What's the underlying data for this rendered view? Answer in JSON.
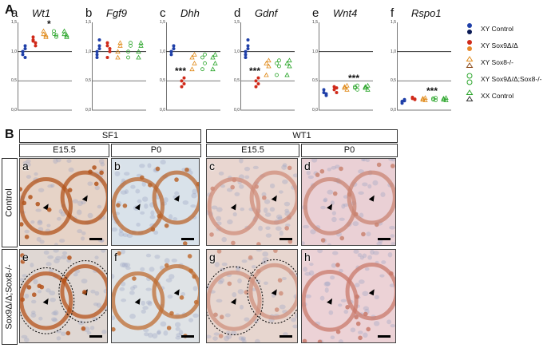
{
  "section_a": {
    "letter": "A",
    "panels": [
      {
        "letter": "a",
        "gene": "Wt1",
        "sig": "*",
        "sig_pos": 3
      },
      {
        "letter": "b",
        "gene": "Fgf9",
        "sig": "",
        "sig_pos": 0
      },
      {
        "letter": "c",
        "gene": "Dhh",
        "sig": "***",
        "sig_pos": 1
      },
      {
        "letter": "d",
        "gene": "Gdnf",
        "sig": "***",
        "sig_pos": 1
      },
      {
        "letter": "e",
        "gene": "Wnt4",
        "sig": "***",
        "sig_pos": 3
      },
      {
        "letter": "f",
        "gene": "Rspo1",
        "sig": "***",
        "sig_pos": 3
      }
    ],
    "y_ticks": [
      "1,5",
      "1,0",
      "0,5",
      "0,0"
    ],
    "legend": [
      {
        "label": "XY Control",
        "color": "#1f3fa8",
        "shape": "filled"
      },
      {
        "label": "XY Sox9Δ/Δ",
        "color": "#d02a1a",
        "shape": "filled"
      },
      {
        "label": "XY Sox8-/-",
        "color": "#e08a1a",
        "shape": "triangle"
      },
      {
        "label": "XY Sox9Δ/Δ;Sox8-/-",
        "color": "#2aa52a",
        "shape": "circle"
      },
      {
        "label": "XX Control",
        "color": "#2aa52a",
        "shape": "triangle"
      }
    ]
  },
  "chart_data": [
    {
      "type": "scatter",
      "title": "Wt1",
      "ylim": [
        0,
        1.5
      ],
      "yticks": [
        "1,5",
        "1,0",
        "0,5",
        "0,0"
      ],
      "series": [
        {
          "name": "XY Control",
          "values": [
            1.0,
            1.05,
            0.95,
            1.1,
            1.0,
            0.9
          ]
        },
        {
          "name": "XY Sox9Δ/Δ",
          "values": [
            1.2,
            1.15,
            1.25,
            1.1,
            1.18
          ]
        },
        {
          "name": "XY Sox8-/-",
          "values": [
            1.3,
            1.25,
            1.35,
            1.28
          ]
        },
        {
          "name": "XY Sox9Δ/Δ;Sox8-/-",
          "values": [
            1.3,
            1.25,
            1.35,
            1.28
          ]
        },
        {
          "name": "XX Control",
          "values": [
            1.3,
            1.25,
            1.35,
            1.28
          ]
        }
      ]
    },
    {
      "type": "scatter",
      "title": "Fgf9",
      "ylim": [
        0,
        1.5
      ],
      "yticks": [
        "1,5",
        "1,0",
        "0,5",
        "0,0"
      ],
      "series": [
        {
          "name": "XY Control",
          "values": [
            1.0,
            1.2,
            0.9,
            1.1,
            0.95,
            1.05
          ]
        },
        {
          "name": "XY Sox9Δ/Δ",
          "values": [
            1.1,
            1.0,
            0.9,
            1.05,
            1.15
          ]
        },
        {
          "name": "XY Sox8-/-",
          "values": [
            1.0,
            1.15,
            0.9,
            1.1
          ]
        },
        {
          "name": "XY Sox9Δ/Δ;Sox8-/-",
          "values": [
            1.0,
            1.15,
            0.9,
            1.1
          ]
        },
        {
          "name": "XX Control",
          "values": [
            1.0,
            1.15,
            0.9,
            1.1
          ]
        }
      ]
    },
    {
      "type": "scatter",
      "title": "Dhh",
      "ylim": [
        0,
        1.5
      ],
      "yticks": [
        "1,5",
        "1,0",
        "0,5",
        "0,0"
      ],
      "series": [
        {
          "name": "XY Control",
          "values": [
            1.0,
            1.05,
            0.95,
            1.1,
            1.0
          ]
        },
        {
          "name": "XY Sox9Δ/Δ",
          "values": [
            0.5,
            0.45,
            0.4,
            0.55
          ]
        },
        {
          "name": "XY Sox8-/-",
          "values": [
            0.9,
            0.8,
            0.7,
            0.95
          ]
        },
        {
          "name": "XY Sox9Δ/Δ;Sox8-/-",
          "values": [
            0.9,
            0.8,
            0.7,
            0.95
          ]
        },
        {
          "name": "XX Control",
          "values": [
            0.9,
            0.8,
            0.7,
            0.95
          ]
        }
      ]
    },
    {
      "type": "scatter",
      "title": "Gdnf",
      "ylim": [
        0,
        1.5
      ],
      "yticks": [
        "1,5",
        "1,0",
        "0,5",
        "0,0"
      ],
      "series": [
        {
          "name": "XY Control",
          "values": [
            1.0,
            1.2,
            0.9,
            1.1,
            0.95,
            1.05
          ]
        },
        {
          "name": "XY Sox9Δ/Δ",
          "values": [
            0.5,
            0.45,
            0.4,
            0.55
          ]
        },
        {
          "name": "XY Sox8-/-",
          "values": [
            0.8,
            0.75,
            0.6,
            0.85
          ]
        },
        {
          "name": "XY Sox9Δ/Δ;Sox8-/-",
          "values": [
            0.8,
            0.75,
            0.6,
            0.85
          ]
        },
        {
          "name": "XX Control",
          "values": [
            0.8,
            0.75,
            0.6,
            0.85
          ]
        }
      ]
    },
    {
      "type": "scatter",
      "title": "Wnt4",
      "ylim": [
        0,
        1.5
      ],
      "yticks": [
        "1,5",
        "1,0",
        "0,5",
        "0,0"
      ],
      "series": [
        {
          "name": "XY Control",
          "values": [
            0.3,
            0.25,
            0.35,
            0.28
          ]
        },
        {
          "name": "XY Sox9Δ/Δ",
          "values": [
            0.35,
            0.3,
            0.4,
            0.38
          ]
        },
        {
          "name": "XY Sox8-/-",
          "values": [
            0.4,
            0.35,
            0.38,
            0.42
          ]
        },
        {
          "name": "XY Sox9Δ/Δ;Sox8-/-",
          "values": [
            0.4,
            0.35,
            0.38,
            0.42
          ]
        },
        {
          "name": "XX Control",
          "values": [
            0.4,
            0.35,
            0.38,
            0.42
          ]
        }
      ]
    },
    {
      "type": "scatter",
      "title": "Rspo1",
      "ylim": [
        0,
        1.5
      ],
      "yticks": [
        "1,5",
        "1,0",
        "0,5",
        "0,0"
      ],
      "series": [
        {
          "name": "XY Control",
          "values": [
            0.15,
            0.18,
            0.12,
            0.16
          ]
        },
        {
          "name": "XY Sox9Δ/Δ",
          "values": [
            0.2,
            0.18,
            0.22,
            0.19
          ]
        },
        {
          "name": "XY Sox8-/-",
          "values": [
            0.2,
            0.17,
            0.18,
            0.21
          ]
        },
        {
          "name": "XY Sox9Δ/Δ;Sox8-/-",
          "values": [
            0.2,
            0.17,
            0.18,
            0.21
          ]
        },
        {
          "name": "XX Control",
          "values": [
            0.2,
            0.17,
            0.18,
            0.21
          ]
        }
      ]
    }
  ],
  "section_b": {
    "letter": "B",
    "marker_headers": [
      "SF1",
      "WT1"
    ],
    "stage_headers": [
      "E15.5",
      "P0",
      "E15.5",
      "P0"
    ],
    "row_labels": [
      "Control",
      "Sox9Δ/Δ;Sox8-/-"
    ],
    "tiles": [
      {
        "letter": "a",
        "bg": "#e6d3c7",
        "cell": "#b1531b"
      },
      {
        "letter": "b",
        "bg": "#d9e2ea",
        "cell": "#b9652d"
      },
      {
        "letter": "c",
        "bg": "#e9d6d0",
        "cell": "#cf8c7a"
      },
      {
        "letter": "d",
        "bg": "#ead0d5",
        "cell": "#c98471"
      },
      {
        "letter": "e",
        "bg": "#dfd7d3",
        "cell": "#b5531b"
      },
      {
        "letter": "f",
        "bg": "#dfe3e6",
        "cell": "#bf6d33"
      },
      {
        "letter": "g",
        "bg": "#e7d6cf",
        "cell": "#cf907d"
      },
      {
        "letter": "h",
        "bg": "#ecd2d6",
        "cell": "#c97a6b"
      }
    ]
  }
}
